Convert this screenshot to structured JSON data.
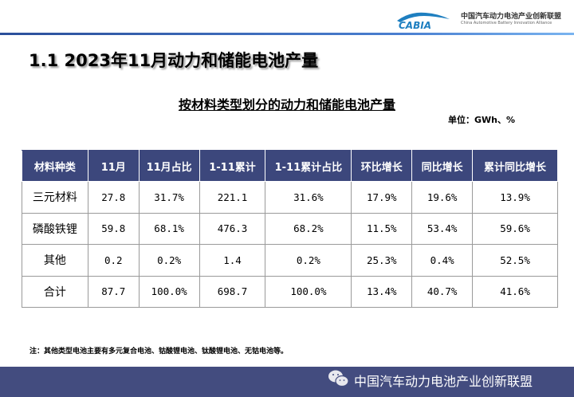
{
  "header": {
    "logo_text": "CABIA",
    "org_name_cn": "中国汽车动力电池产业创新联盟",
    "org_name_en": "China Automotive Battery Innovation Alliance"
  },
  "title": "1.1  2023年11月动力和储能电池产量",
  "subtitle": "按材料类型划分的动力和储能电池产量",
  "unit": "单位：GWh、%",
  "table": {
    "columns": [
      "材料种类",
      "11月",
      "11月占比",
      "1-11累计",
      "1-11累计占比",
      "环比增长",
      "同比增长",
      "累计同比增长"
    ],
    "rows": [
      [
        "三元材料",
        "27.8",
        "31.7%",
        "221.1",
        "31.6%",
        "17.9%",
        "19.6%",
        "13.9%"
      ],
      [
        "磷酸铁锂",
        "59.8",
        "68.1%",
        "476.3",
        "68.2%",
        "11.5%",
        "53.4%",
        "59.6%"
      ],
      [
        "其他",
        "0.2",
        "0.2%",
        "1.4",
        "0.2%",
        "25.3%",
        "0.4%",
        "52.5%"
      ],
      [
        "合计",
        "87.7",
        "100.0%",
        "698.7",
        "100.0%",
        "13.4%",
        "40.7%",
        "41.6%"
      ]
    ]
  },
  "note": "注：其他类型电池主要有多元复合电池、钴酸锂电池、钛酸锂电池、无钴电池等。",
  "footer": {
    "text": "中国汽车动力电池产业创新联盟",
    "icon": "wechat-icon"
  },
  "colors": {
    "header_bg": "#3c477c",
    "footer_bg": "#434c7f",
    "logo_blue": "#1e7fc0"
  }
}
